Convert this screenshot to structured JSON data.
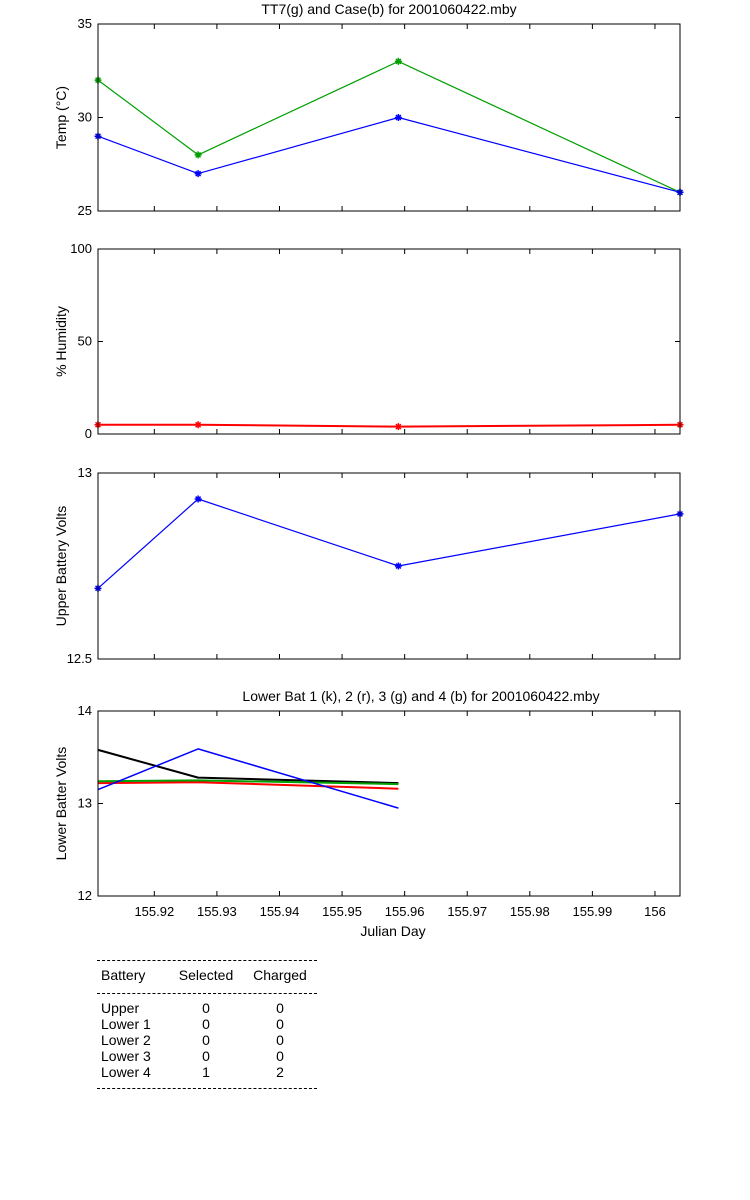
{
  "chart_data": [
    {
      "type": "line",
      "title": "TT7(g) and Case(b) for 2001060422.mby",
      "xlabel": "",
      "ylabel": "Temp  (°C)",
      "xlim": [
        155.911,
        156.004
      ],
      "ylim": [
        25,
        35
      ],
      "yticks": [
        25,
        30,
        35
      ],
      "series": [
        {
          "color": "#00a000",
          "marker": "*",
          "x": [
            155.911,
            155.927,
            155.959,
            156.004
          ],
          "y": [
            32,
            28,
            33,
            26
          ]
        },
        {
          "color": "#0000ff",
          "marker": "*",
          "x": [
            155.911,
            155.927,
            155.959,
            156.004
          ],
          "y": [
            29,
            27,
            30,
            26
          ]
        }
      ]
    },
    {
      "type": "line",
      "title": "",
      "xlabel": "",
      "ylabel": "% Humidity",
      "xlim": [
        155.911,
        156.004
      ],
      "ylim": [
        0,
        100
      ],
      "yticks": [
        0,
        50,
        100
      ],
      "series": [
        {
          "color": "#ff0000",
          "marker": "*",
          "width": 2,
          "x": [
            155.911,
            155.927,
            155.959,
            156.004
          ],
          "y": [
            5,
            5,
            4,
            5
          ]
        }
      ]
    },
    {
      "type": "line",
      "title": "",
      "xlabel": "",
      "ylabel": "Upper Battery Volts",
      "xlim": [
        155.911,
        156.004
      ],
      "ylim": [
        12.5,
        13
      ],
      "yticks": [
        12.5,
        13
      ],
      "series": [
        {
          "color": "#0000ff",
          "marker": "*",
          "x": [
            155.911,
            155.927,
            155.959,
            156.004
          ],
          "y": [
            12.69,
            12.93,
            12.75,
            12.89
          ]
        }
      ]
    },
    {
      "type": "line",
      "title": "Lower Bat 1 (k), 2 (r), 3 (g) and 4 (b) for 2001060422.mby",
      "xlabel": "Julian Day",
      "ylabel": "Lower Batter Volts",
      "xlim": [
        155.911,
        156.004
      ],
      "ylim": [
        12,
        14
      ],
      "yticks": [
        12,
        13,
        14
      ],
      "xticks": [
        155.92,
        155.93,
        155.94,
        155.95,
        155.96,
        155.97,
        155.98,
        155.99,
        156
      ],
      "xticklabels": [
        "155.92",
        "155.93",
        "155.94",
        "155.95",
        "155.96",
        "155.97",
        "155.98",
        "155.99",
        "156"
      ],
      "series": [
        {
          "color": "#000000",
          "width": 2,
          "x": [
            155.911,
            155.927,
            155.959
          ],
          "y": [
            13.58,
            13.28,
            13.22
          ]
        },
        {
          "color": "#ff0000",
          "width": 2,
          "x": [
            155.911,
            155.927,
            155.959
          ],
          "y": [
            13.22,
            13.23,
            13.16
          ]
        },
        {
          "color": "#00a000",
          "width": 2,
          "x": [
            155.911,
            155.927,
            155.959
          ],
          "y": [
            13.24,
            13.25,
            13.21
          ]
        },
        {
          "color": "#0000ff",
          "width": 1.5,
          "x": [
            155.911,
            155.927,
            155.959
          ],
          "y": [
            13.15,
            13.59,
            12.95
          ]
        }
      ]
    }
  ],
  "battery_table": {
    "headers": [
      "Battery",
      "Selected",
      "Charged"
    ],
    "rows": [
      [
        "Upper",
        "0",
        "0"
      ],
      [
        "Lower 1",
        "0",
        "0"
      ],
      [
        "Lower 2",
        "0",
        "0"
      ],
      [
        "Lower 3",
        "0",
        "0"
      ],
      [
        "Lower 4",
        "1",
        "2"
      ]
    ]
  }
}
